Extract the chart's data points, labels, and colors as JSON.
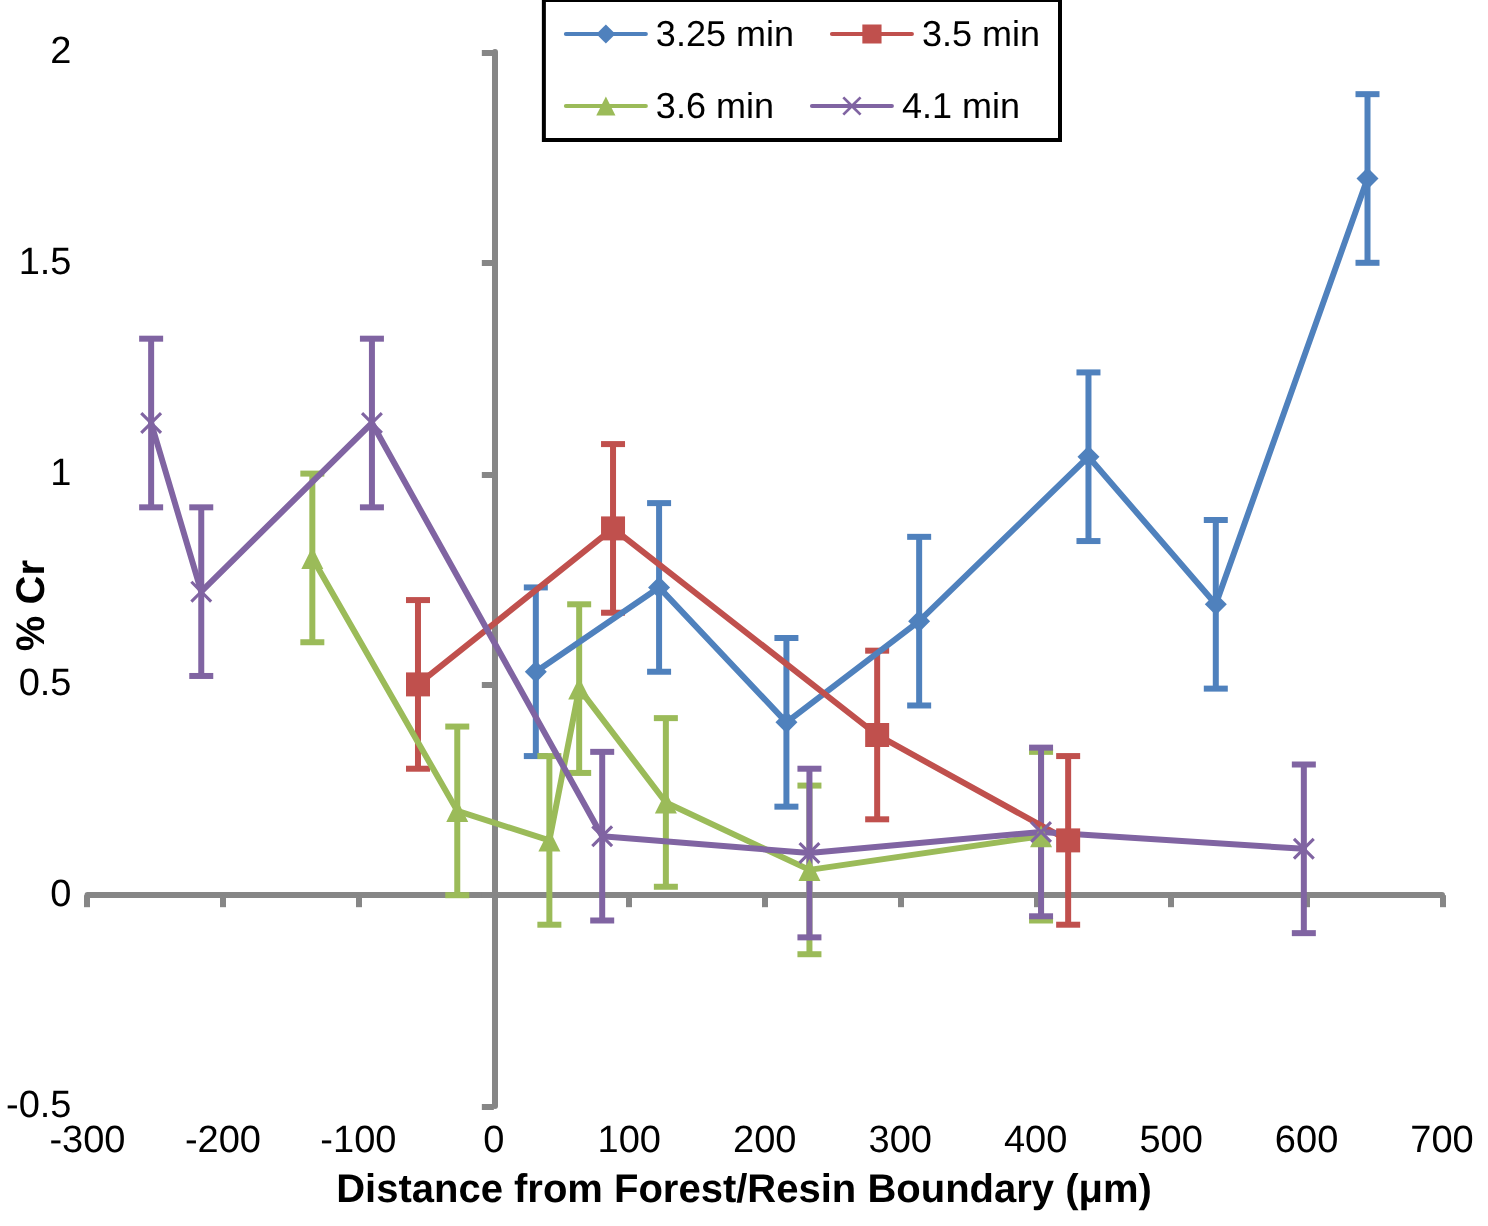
{
  "chart_data": {
    "type": "line",
    "xlabel": "Distance from Forest/Resin Boundary (μm)",
    "ylabel": "% Cr",
    "xlim": [
      -300,
      700
    ],
    "xticks": [
      -300,
      -200,
      -100,
      0,
      100,
      200,
      300,
      400,
      500,
      600,
      700
    ],
    "ylim": [
      -0.5,
      2
    ],
    "yticks": [
      -0.5,
      0,
      0.5,
      1,
      1.5,
      2
    ],
    "legend": "top right",
    "series": [
      {
        "name": "3.25 min",
        "color": "#4f81bd",
        "marker": "diamond",
        "x": [
          31,
          122,
          216,
          314,
          439,
          533,
          645
        ],
        "values": [
          0.53,
          0.73,
          0.41,
          0.65,
          1.04,
          0.69,
          1.7
        ],
        "errors": [
          0.2,
          0.2,
          0.2,
          0.2,
          0.2,
          0.2,
          0.2
        ]
      },
      {
        "name": "3.5 min",
        "color": "#c0504d",
        "marker": "square",
        "x": [
          -56,
          88,
          283,
          424
        ],
        "values": [
          0.5,
          0.87,
          0.38,
          0.13
        ],
        "errors": [
          0.2,
          0.2,
          0.2,
          0.2
        ]
      },
      {
        "name": "3.6 min",
        "color": "#9bbb59",
        "marker": "triangle",
        "x": [
          -134,
          -27,
          41,
          63,
          127,
          233,
          404
        ],
        "values": [
          0.8,
          0.2,
          0.13,
          0.49,
          0.22,
          0.06,
          0.14
        ],
        "errors": [
          0.2,
          0.2,
          0.2,
          0.2,
          0.2,
          0.2,
          0.2
        ]
      },
      {
        "name": "4.1 min",
        "color": "#8064a2",
        "marker": "cross",
        "x": [
          -253,
          -216,
          -90,
          80,
          233,
          404,
          598
        ],
        "values": [
          1.12,
          0.72,
          1.12,
          0.14,
          0.1,
          0.15,
          0.11
        ],
        "errors": [
          0.2,
          0.2,
          0.2,
          0.2,
          0.2,
          0.2,
          0.2
        ]
      }
    ]
  }
}
